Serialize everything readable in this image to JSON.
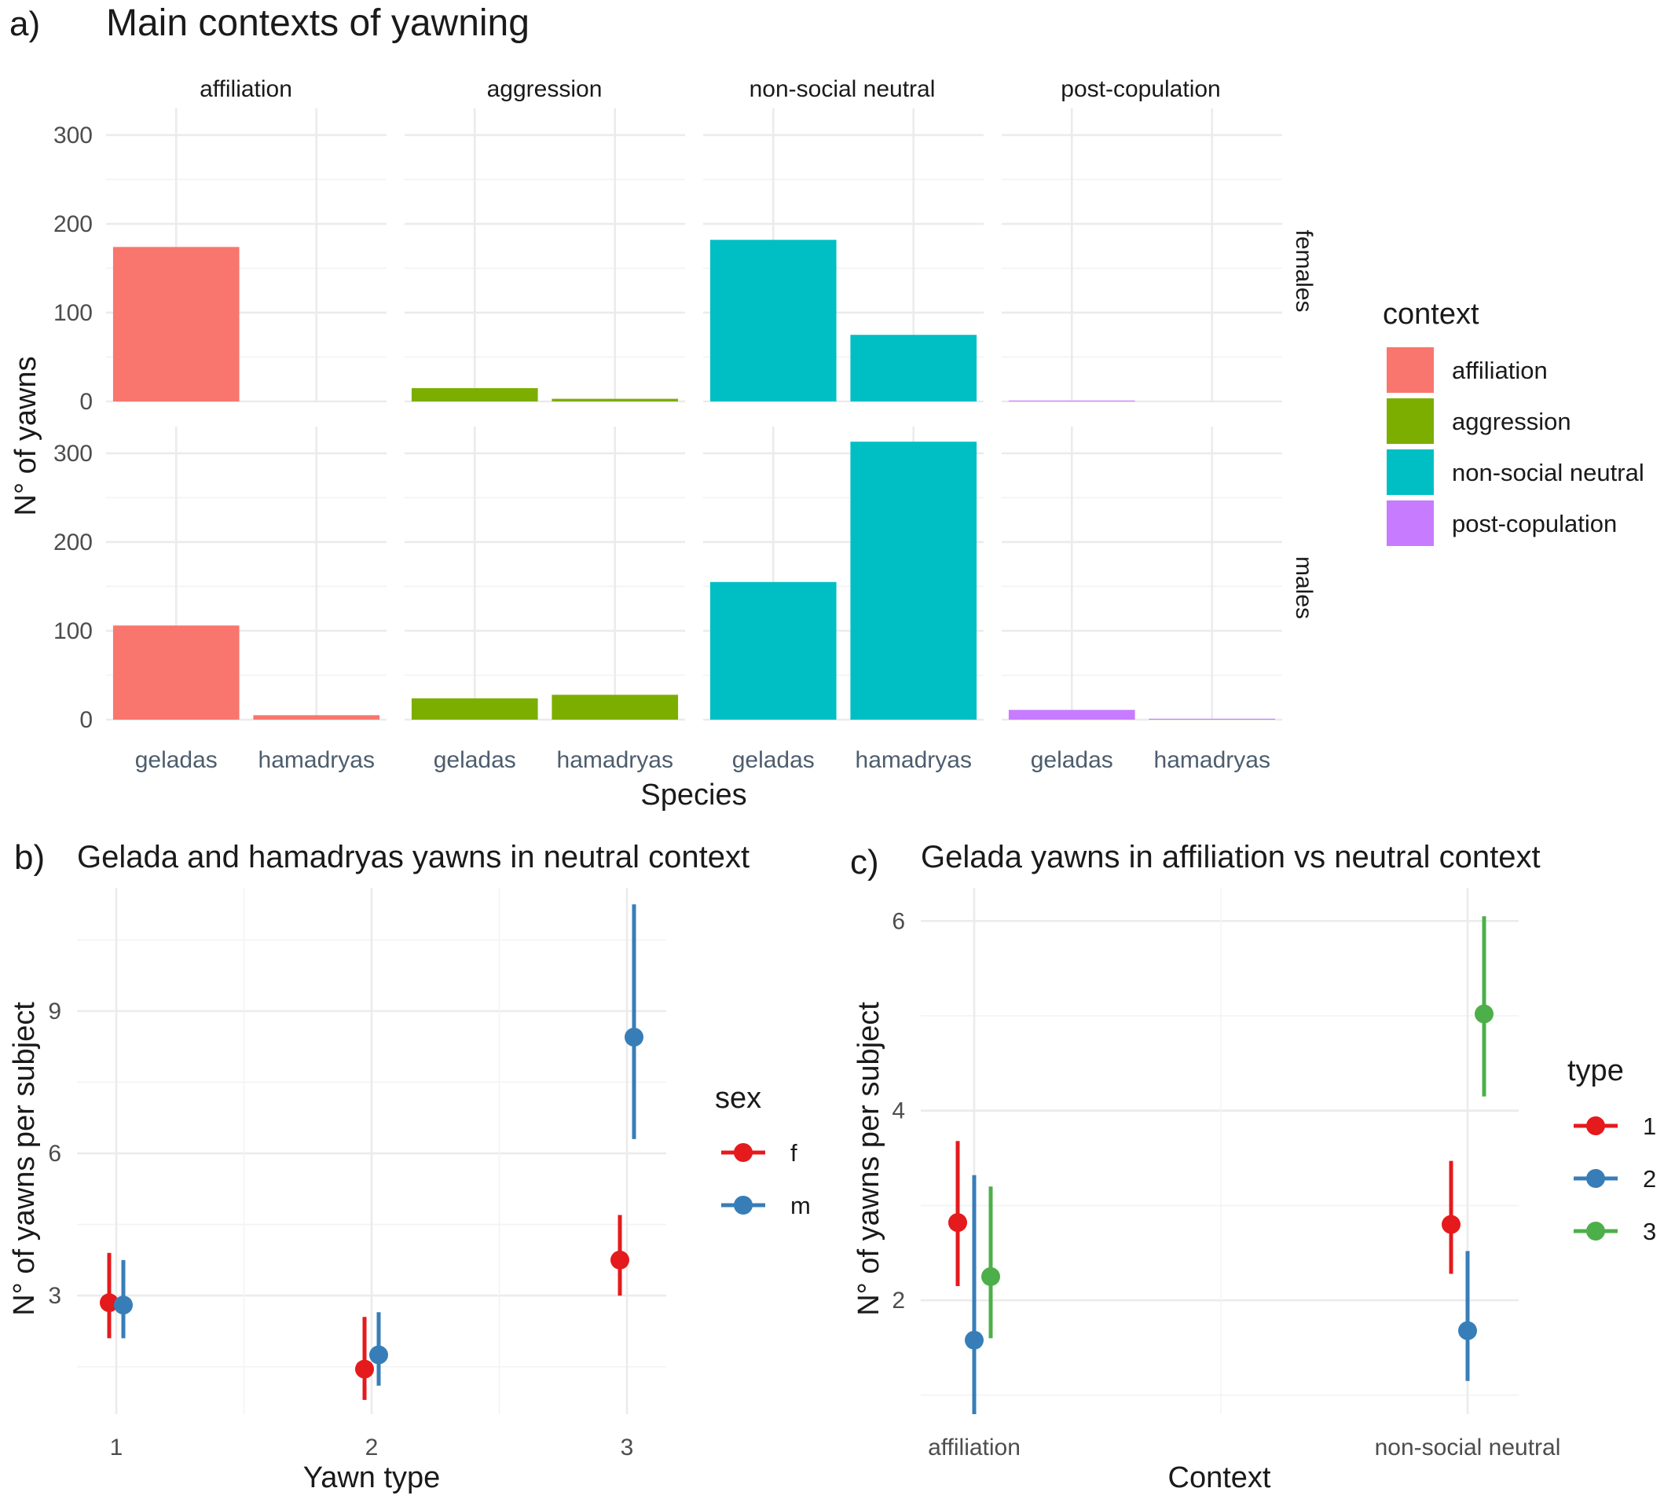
{
  "figure": {
    "panel_tags": [
      "a)",
      "b)",
      "c)"
    ]
  },
  "colors": {
    "affiliation": "#F8766D",
    "aggression": "#7CAE00",
    "non-social neutral": "#00BFC4",
    "post-copulation": "#C77CFF",
    "type1": "#E41A1C",
    "type2": "#377EB8",
    "type3": "#4DAF4A",
    "sex_f": "#E41A1C",
    "sex_m": "#377EB8"
  },
  "chart_data": [
    {
      "id": "a",
      "type": "bar",
      "title": "Main contexts of yawning",
      "xlabel": "Species",
      "ylabel": "N° of yawns",
      "facet_cols": [
        "affiliation",
        "aggression",
        "non-social neutral",
        "post-copulation"
      ],
      "facet_rows": [
        "females",
        "males"
      ],
      "categories": [
        "geladas",
        "hamadryas"
      ],
      "ylim": [
        0,
        330
      ],
      "yticks": [
        0,
        100,
        200,
        300
      ],
      "legend": {
        "title": "context",
        "entries": [
          "affiliation",
          "aggression",
          "non-social neutral",
          "post-copulation"
        ],
        "position": "right"
      },
      "values": {
        "females": {
          "affiliation": [
            174,
            0
          ],
          "aggression": [
            15,
            3
          ],
          "non-social neutral": [
            182,
            75
          ],
          "post-copulation": [
            1,
            0
          ]
        },
        "males": {
          "affiliation": [
            106,
            5
          ],
          "aggression": [
            24,
            28
          ],
          "non-social neutral": [
            155,
            313
          ],
          "post-copulation": [
            11,
            1
          ]
        }
      },
      "grid": true
    },
    {
      "id": "b",
      "type": "scatter",
      "title": "Gelada and hamadryas yawns in neutral context",
      "xlabel": "Yawn type",
      "ylabel": "N° of yawns per subject",
      "categories": [
        "1",
        "2",
        "3"
      ],
      "ylim": [
        0.5,
        11.6
      ],
      "yticks": [
        3,
        6,
        9
      ],
      "legend": {
        "title": "sex",
        "entries": [
          "f",
          "m"
        ],
        "position": "right"
      },
      "series": [
        {
          "name": "f",
          "y": [
            2.85,
            1.45,
            3.75
          ],
          "lower": [
            2.1,
            0.8,
            3.0
          ],
          "upper": [
            3.9,
            2.55,
            4.7
          ]
        },
        {
          "name": "m",
          "y": [
            2.8,
            1.75,
            8.45
          ],
          "lower": [
            2.1,
            1.1,
            6.3
          ],
          "upper": [
            3.75,
            2.65,
            11.25
          ]
        }
      ],
      "grid": true
    },
    {
      "id": "c",
      "type": "scatter",
      "title": "Gelada yawns in affiliation vs neutral context",
      "xlabel": "Context",
      "ylabel": "N° of yawns per subject",
      "categories": [
        "affiliation",
        "non-social neutral"
      ],
      "ylim": [
        0.8,
        6.35
      ],
      "yticks": [
        2,
        4,
        6
      ],
      "legend": {
        "title": "type",
        "entries": [
          "1",
          "2",
          "3"
        ],
        "position": "right"
      },
      "series": [
        {
          "name": "1",
          "y": [
            2.82,
            2.8
          ],
          "lower": [
            2.15,
            2.28
          ],
          "upper": [
            3.68,
            3.47
          ]
        },
        {
          "name": "2",
          "y": [
            1.58,
            1.68
          ],
          "lower": [
            0.8,
            1.15
          ],
          "upper": [
            3.32,
            2.52
          ]
        },
        {
          "name": "3",
          "y": [
            2.25,
            5.02
          ],
          "lower": [
            1.6,
            4.15
          ],
          "upper": [
            3.2,
            6.05
          ]
        }
      ],
      "grid": true
    }
  ]
}
